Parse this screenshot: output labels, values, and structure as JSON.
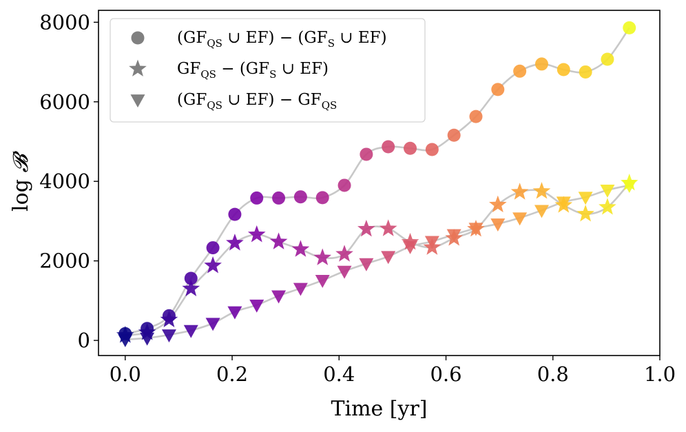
{
  "chart_data": {
    "type": "scatter",
    "title": "",
    "xlabel": "Time [yr]",
    "ylabel_prefix": "log ",
    "ylabel_symbol": "𝓑",
    "xlim": [
      -0.05,
      1.0
    ],
    "ylim": [
      -380,
      8300
    ],
    "xticks": [
      0.0,
      0.2,
      0.4,
      0.6,
      0.8,
      1.0
    ],
    "xtick_labels": [
      "0.0",
      "0.2",
      "0.4",
      "0.6",
      "0.8",
      "1.0"
    ],
    "yticks": [
      0,
      2000,
      4000,
      6000,
      8000
    ],
    "ytick_labels": [
      "0",
      "2000",
      "4000",
      "6000",
      "8000"
    ],
    "grid": false,
    "legend_position": "top-left",
    "colormap": "plasma",
    "trend_line_color": "#c8c8c8",
    "legend_marker_color": "#808080",
    "x": [
      0.0,
      0.041,
      0.082,
      0.123,
      0.164,
      0.205,
      0.246,
      0.287,
      0.328,
      0.369,
      0.41,
      0.451,
      0.492,
      0.533,
      0.574,
      0.615,
      0.656,
      0.697,
      0.738,
      0.779,
      0.82,
      0.861,
      0.902,
      0.943
    ],
    "series": [
      {
        "name": "circle",
        "marker": "circle",
        "legend": {
          "p1": "(GF",
          "s1": "QS",
          "p2": " ∪ EF) − (GF",
          "s2": "S",
          "p3": " ∪ EF)"
        },
        "values": [
          170,
          300,
          620,
          1560,
          2330,
          3170,
          3580,
          3580,
          3610,
          3590,
          3900,
          4680,
          4870,
          4830,
          4800,
          5160,
          5630,
          6310,
          6770,
          6950,
          6810,
          6750,
          7070,
          7860
        ]
      },
      {
        "name": "star",
        "marker": "star",
        "legend": {
          "p1": "GF",
          "s1": "QS",
          "p2": " − (GF",
          "s2": "S",
          "p3": " ∪ EF)"
        },
        "values": [
          130,
          200,
          520,
          1300,
          1880,
          2450,
          2660,
          2480,
          2290,
          2080,
          2170,
          2800,
          2810,
          2470,
          2340,
          2570,
          2800,
          3410,
          3730,
          3750,
          3400,
          3180,
          3350,
          3960
        ]
      },
      {
        "name": "triangle",
        "marker": "triangle_down",
        "legend": {
          "p1": "(GF",
          "s1": "QS",
          "p2": " ∪ EF) − GF",
          "s2": "QS",
          "p3": ""
        },
        "values": [
          20,
          60,
          140,
          250,
          430,
          720,
          890,
          1120,
          1310,
          1510,
          1740,
          1930,
          2110,
          2360,
          2490,
          2660,
          2820,
          2930,
          3080,
          3270,
          3480,
          3600,
          3780,
          3900
        ]
      }
    ]
  }
}
